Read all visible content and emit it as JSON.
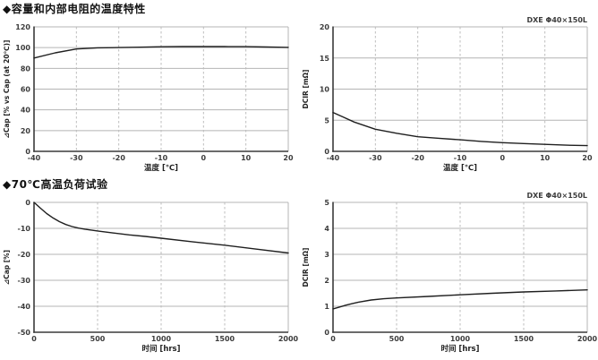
{
  "sections": [
    {
      "heading": "◆容量和内部电阻的温度特性"
    },
    {
      "heading": "◆70℃高温负荷试验"
    }
  ],
  "colors": {
    "curve": "#1f1f1f",
    "grid": "#b4b4b4",
    "grid_dashed": "#bdbdbd",
    "axis": "#3a3a3a",
    "tick_text": "#3c3c3c",
    "label_text": "#222222",
    "heading_text": "#111111"
  },
  "chart_data": [
    {
      "type": "line",
      "title": "",
      "xlabel": "温度 [℃]",
      "ylabel": "⊿Cap [% vs Cap (at 20℃)]",
      "annotation": "",
      "xlim": [
        -40,
        20
      ],
      "ylim": [
        0,
        120
      ],
      "x_ticks": [
        -40,
        -30,
        -20,
        -10,
        0,
        10,
        20
      ],
      "y_ticks": [
        0,
        20,
        40,
        60,
        80,
        100,
        120
      ],
      "grid": {
        "horizontal": "solid",
        "vertical": "dashed"
      },
      "legend": "none",
      "series": [
        {
          "name": "⊿Cap",
          "x": [
            -40,
            -35,
            -30,
            -25,
            -20,
            -15,
            -10,
            -5,
            0,
            5,
            10,
            15,
            20
          ],
          "y": [
            90,
            95,
            98.7,
            99.8,
            100.1,
            100.4,
            100.8,
            101,
            101,
            101,
            100.9,
            100.6,
            100.2
          ]
        }
      ]
    },
    {
      "type": "line",
      "title": "",
      "xlabel": "温度 [℃]",
      "ylabel": "DCIR [mΩ]",
      "annotation": "DXE Φ40×150L",
      "xlim": [
        -40,
        20
      ],
      "ylim": [
        0,
        20
      ],
      "x_ticks": [
        -40,
        -30,
        -20,
        -10,
        0,
        10,
        20
      ],
      "y_ticks": [
        0,
        5,
        10,
        15,
        20
      ],
      "grid": {
        "horizontal": "solid",
        "vertical": "dashed"
      },
      "legend": "none",
      "series": [
        {
          "name": "DCIR",
          "x": [
            -40,
            -35,
            -30,
            -25,
            -20,
            -15,
            -10,
            -5,
            0,
            5,
            10,
            15,
            20
          ],
          "y": [
            6.25,
            4.7,
            3.55,
            2.9,
            2.35,
            2.1,
            1.85,
            1.6,
            1.4,
            1.25,
            1.12,
            1.0,
            0.92
          ]
        }
      ]
    },
    {
      "type": "line",
      "title": "",
      "xlabel": "时间 [hrs]",
      "ylabel": "⊿Cap [%]",
      "annotation": "",
      "xlim": [
        0,
        2000
      ],
      "ylim": [
        -50,
        0
      ],
      "x_ticks": [
        0,
        500,
        1000,
        1500,
        2000
      ],
      "y_ticks": [
        0,
        -10,
        -20,
        -30,
        -40,
        -50
      ],
      "grid": {
        "horizontal": "solid",
        "vertical": "dashed"
      },
      "legend": "none",
      "series": [
        {
          "name": "⊿Cap",
          "x": [
            0,
            50,
            100,
            150,
            200,
            250,
            300,
            350,
            400,
            500,
            625,
            750,
            875,
            1000,
            1250,
            1500,
            1750,
            2000
          ],
          "y": [
            0,
            -2.2,
            -4.3,
            -6.0,
            -7.4,
            -8.5,
            -9.3,
            -9.9,
            -10.3,
            -11.0,
            -11.8,
            -12.5,
            -13.1,
            -13.8,
            -15.2,
            -16.5,
            -18.0,
            -19.5
          ]
        }
      ]
    },
    {
      "type": "line",
      "title": "",
      "xlabel": "时间 [hrs]",
      "ylabel": "DCIR [mΩ]",
      "annotation": "DXE Φ40×150L",
      "xlim": [
        0,
        2000
      ],
      "ylim": [
        0,
        5
      ],
      "x_ticks": [
        0,
        500,
        1000,
        1500,
        2000
      ],
      "y_ticks": [
        0,
        1,
        2,
        3,
        4,
        5
      ],
      "grid": {
        "horizontal": "solid",
        "vertical": "dashed"
      },
      "legend": "none",
      "series": [
        {
          "name": "DCIR",
          "x": [
            0,
            50,
            100,
            150,
            200,
            300,
            400,
            500,
            750,
            1000,
            1250,
            1500,
            1750,
            2000
          ],
          "y": [
            0.9,
            0.97,
            1.04,
            1.1,
            1.16,
            1.24,
            1.29,
            1.32,
            1.38,
            1.44,
            1.5,
            1.55,
            1.59,
            1.63
          ]
        }
      ]
    }
  ]
}
